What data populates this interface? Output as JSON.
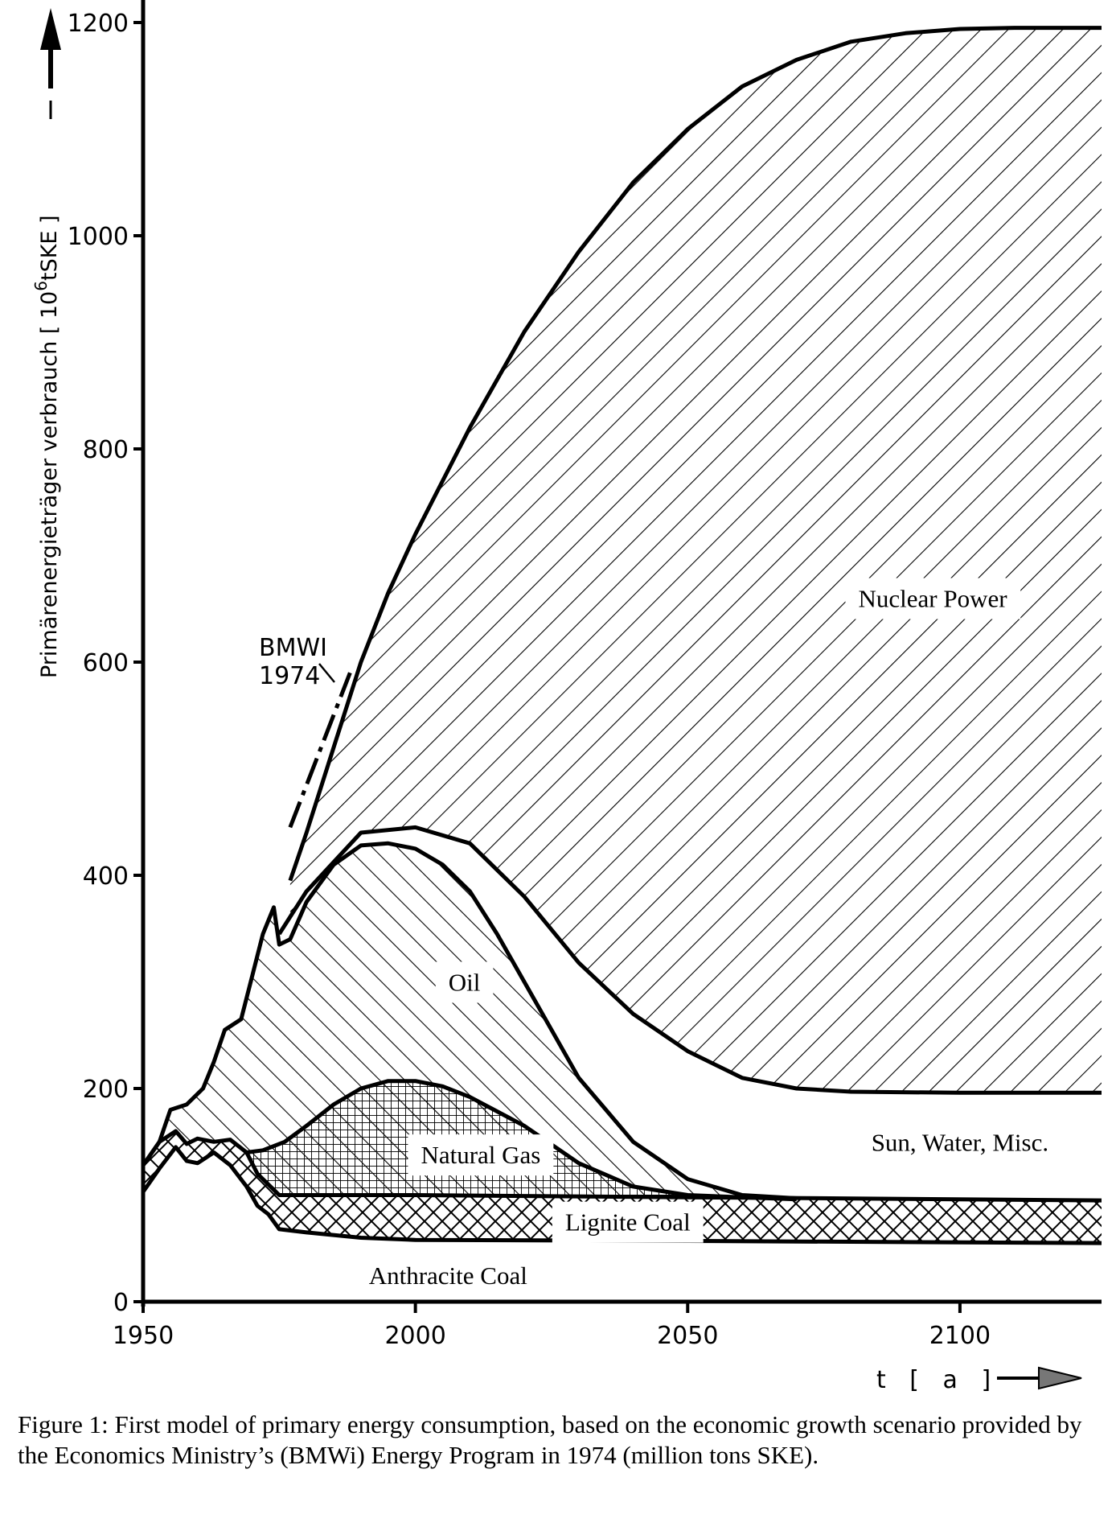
{
  "chart_data": {
    "type": "area",
    "ylabel": "Primärenergieträger verbrauch [ 10^6 tSKE ]",
    "ylabel_main": "Primärenergieträger verbrauch [ 10",
    "ylabel_exp": "6",
    "ylabel_unit": "tSKE ]",
    "xlabel": "t [ a ]",
    "xlim": [
      1950,
      2126
    ],
    "ylim": [
      0,
      1200
    ],
    "x_ticks": [
      1950,
      2000,
      2050,
      2100
    ],
    "y_ticks": [
      0,
      200,
      400,
      600,
      800,
      1000,
      1200
    ],
    "grid": false,
    "annotation": {
      "line1": "BMWI",
      "line2": "1974",
      "x": [
        1977,
        1988
      ],
      "y": [
        445,
        590
      ]
    },
    "series": [
      {
        "name": "Anthracite Coal",
        "hatch": "none",
        "x": [
          1950,
          1953,
          1956,
          1958,
          1960,
          1963,
          1966,
          1969,
          1971,
          1973,
          1975,
          1980,
          1990,
          2000,
          2050,
          2126
        ],
        "y": [
          103,
          125,
          145,
          132,
          130,
          140,
          128,
          108,
          90,
          82,
          68,
          65,
          60,
          58,
          57,
          55
        ]
      },
      {
        "name": "Lignite Coal",
        "hatch": "crosshatch",
        "x": [
          1950,
          1953,
          1956,
          1958,
          1960,
          1963,
          1966,
          1969,
          1971,
          1973,
          1975,
          1980,
          1990,
          2000,
          2050,
          2126
        ],
        "y": [
          128,
          150,
          160,
          148,
          153,
          150,
          152,
          140,
          120,
          110,
          100,
          100,
          100,
          100,
          98,
          95
        ]
      },
      {
        "name": "Natural Gas",
        "hatch": "grid",
        "x": [
          1969,
          1972,
          1976,
          1980,
          1985,
          1990,
          1995,
          2000,
          2005,
          2010,
          2020,
          2030,
          2040,
          2050,
          2060,
          2070
        ],
        "y": [
          140,
          142,
          150,
          165,
          185,
          200,
          207,
          207,
          202,
          192,
          165,
          130,
          108,
          100,
          98,
          96
        ]
      },
      {
        "name": "Oil",
        "hatch": "backslash",
        "x": [
          1950,
          1953,
          1955,
          1958,
          1961,
          1963,
          1965,
          1968,
          1970,
          1972,
          1974,
          1975,
          1977,
          1980,
          1985,
          1990,
          1995,
          2000,
          2005,
          2010,
          2015,
          2020,
          2030,
          2040,
          2050,
          2060,
          2070
        ],
        "y": [
          128,
          150,
          180,
          185,
          200,
          225,
          255,
          265,
          305,
          345,
          370,
          335,
          340,
          375,
          410,
          428,
          430,
          425,
          410,
          385,
          345,
          300,
          210,
          150,
          115,
          100,
          97
        ]
      },
      {
        "name": "Sun, Water, Misc.",
        "hatch": "none",
        "x": [
          1975,
          1980,
          1990,
          2000,
          2010,
          2020,
          2030,
          2040,
          2050,
          2060,
          2070,
          2080,
          2100,
          2126
        ],
        "y": [
          345,
          385,
          440,
          445,
          430,
          380,
          318,
          270,
          235,
          210,
          200,
          197,
          196,
          196
        ]
      },
      {
        "name": "Nuclear Power",
        "hatch": "slash",
        "x": [
          1977,
          1980,
          1985,
          1990,
          1995,
          2000,
          2010,
          2020,
          2030,
          2040,
          2050,
          2060,
          2070,
          2080,
          2090,
          2100,
          2110,
          2126
        ],
        "y": [
          395,
          440,
          520,
          600,
          665,
          720,
          820,
          910,
          985,
          1050,
          1100,
          1140,
          1165,
          1182,
          1190,
          1194,
          1195,
          1195
        ]
      }
    ],
    "labels": {
      "nuclear": "Nuclear Power",
      "oil": "Oil",
      "sun": "Sun, Water, Misc.",
      "gas": "Natural Gas",
      "lignite": "Lignite Coal",
      "anthracite": "Anthracite Coal"
    }
  },
  "caption": "Figure 1: First model of primary energy consumption, based on the economic growth scenario provided by the Economics Ministry’s (BMWi) Energy Program in 1974 (million tons SKE)."
}
